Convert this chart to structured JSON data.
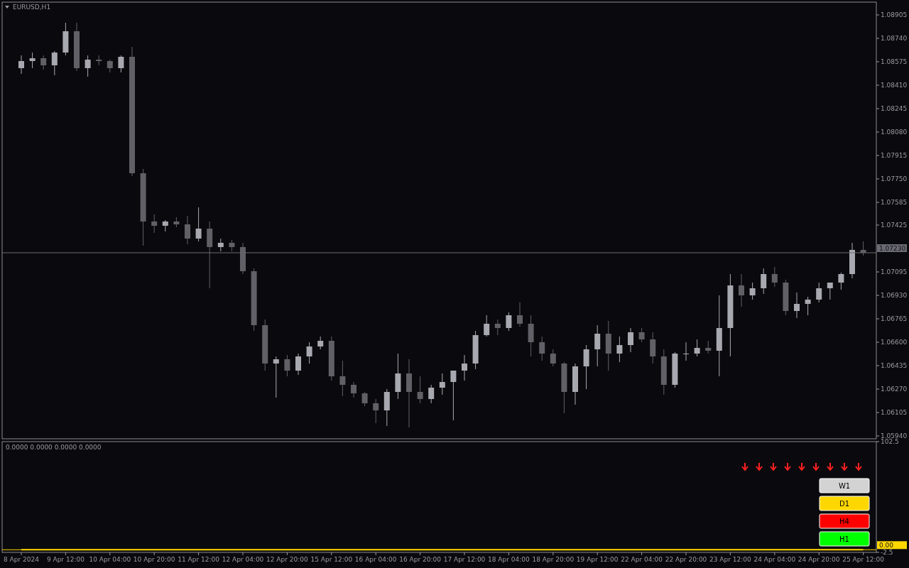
{
  "chart_data": [
    {
      "type": "candlestick",
      "title": "EURUSD,H1",
      "categories": [
        null,
        null,
        null,
        null,
        null,
        null,
        null,
        null,
        null,
        null,
        null,
        null,
        null,
        null,
        null,
        null,
        null,
        null,
        null,
        null,
        null,
        null,
        null,
        null,
        null,
        null,
        null,
        null,
        null,
        null,
        null,
        null,
        null,
        null,
        null,
        null,
        null,
        null,
        null,
        null,
        null,
        null,
        null,
        null,
        null,
        null,
        null,
        null,
        null,
        null,
        null,
        null,
        null,
        null,
        null,
        null,
        null,
        null,
        null,
        null,
        null,
        null,
        null,
        null,
        null,
        null,
        null,
        null,
        null,
        null,
        null,
        null,
        null,
        null,
        null,
        null,
        null
      ],
      "ohlc": [
        [
          1.0853,
          1.0862,
          1.0849,
          1.0858
        ],
        [
          1.0858,
          1.0864,
          1.0853,
          1.086
        ],
        [
          1.086,
          1.0862,
          1.0852,
          1.0855
        ],
        [
          1.0855,
          1.0865,
          1.0848,
          1.0864
        ],
        [
          1.0864,
          1.0885,
          1.0862,
          1.0879
        ],
        [
          1.0879,
          1.0885,
          1.0851,
          1.0853
        ],
        [
          1.0853,
          1.0862,
          1.0847,
          1.0859
        ],
        [
          1.0859,
          1.0862,
          1.0855,
          1.0858
        ],
        [
          1.0858,
          1.0859,
          1.085,
          1.0853
        ],
        [
          1.0853,
          1.0862,
          1.085,
          1.0861
        ],
        [
          1.0861,
          1.0868,
          1.0777,
          1.0779
        ],
        [
          1.0779,
          1.0782,
          1.0728,
          1.0745
        ],
        [
          1.0745,
          1.075,
          1.0737,
          1.0742
        ],
        [
          1.0742,
          1.0746,
          1.0738,
          1.0745
        ],
        [
          1.0745,
          1.0748,
          1.0741,
          1.0743
        ],
        [
          1.0743,
          1.0749,
          1.0729,
          1.0733
        ],
        [
          1.0733,
          1.0755,
          1.0731,
          1.074
        ],
        [
          1.074,
          1.0745,
          1.0698,
          1.0727
        ],
        [
          1.0727,
          1.0733,
          1.0724,
          1.073
        ],
        [
          1.073,
          1.0732,
          1.0724,
          1.0727
        ],
        [
          1.0727,
          1.073,
          1.0708,
          1.071
        ],
        [
          1.071,
          1.0712,
          1.0668,
          1.0672
        ],
        [
          1.0672,
          1.0676,
          1.064,
          1.0645
        ],
        [
          1.0645,
          1.065,
          1.0621,
          1.0648
        ],
        [
          1.0648,
          1.0651,
          1.0636,
          1.064
        ],
        [
          1.064,
          1.0652,
          1.0637,
          1.065
        ],
        [
          1.065,
          1.066,
          1.0645,
          1.0657
        ],
        [
          1.0657,
          1.0664,
          1.0655,
          1.0661
        ],
        [
          1.0661,
          1.0664,
          1.0633,
          1.0636
        ],
        [
          1.0636,
          1.0647,
          1.0622,
          1.063
        ],
        [
          1.063,
          1.0632,
          1.0621,
          1.0624
        ],
        [
          1.0624,
          1.0625,
          1.0615,
          1.0617
        ],
        [
          1.0617,
          1.062,
          1.0603,
          1.0612
        ],
        [
          1.0612,
          1.0627,
          1.0601,
          1.0625
        ],
        [
          1.0625,
          1.0652,
          1.062,
          1.0638
        ],
        [
          1.0638,
          1.0648,
          1.06,
          1.0625
        ],
        [
          1.0625,
          1.0636,
          1.0617,
          1.062
        ],
        [
          1.062,
          1.063,
          1.0617,
          1.0628
        ],
        [
          1.0628,
          1.0638,
          1.0623,
          1.0632
        ],
        [
          1.0632,
          1.064,
          1.0605,
          1.064
        ],
        [
          1.064,
          1.0651,
          1.0633,
          1.0645
        ],
        [
          1.0645,
          1.0668,
          1.0641,
          1.0665
        ],
        [
          1.0665,
          1.0679,
          1.0664,
          1.0673
        ],
        [
          1.0673,
          1.0676,
          1.0665,
          1.067
        ],
        [
          1.067,
          1.0681,
          1.0668,
          1.0679
        ],
        [
          1.0679,
          1.0688,
          1.0671,
          1.0673
        ],
        [
          1.0673,
          1.0679,
          1.065,
          1.066
        ],
        [
          1.066,
          1.0664,
          1.0647,
          1.0652
        ],
        [
          1.0652,
          1.0655,
          1.0643,
          1.0645
        ],
        [
          1.0645,
          1.0646,
          1.061,
          1.0625
        ],
        [
          1.0625,
          1.0645,
          1.0616,
          1.0643
        ],
        [
          1.0643,
          1.0658,
          1.0627,
          1.0655
        ],
        [
          1.0655,
          1.0672,
          1.0643,
          1.0666
        ],
        [
          1.0666,
          1.0675,
          1.064,
          1.0652
        ],
        [
          1.0652,
          1.0664,
          1.0646,
          1.0658
        ],
        [
          1.0658,
          1.067,
          1.0653,
          1.0667
        ],
        [
          1.0667,
          1.067,
          1.066,
          1.0662
        ],
        [
          1.0662,
          1.0667,
          1.0645,
          1.065
        ],
        [
          1.065,
          1.0655,
          1.0623,
          1.063
        ],
        [
          1.063,
          1.0653,
          1.0628,
          1.0652
        ],
        [
          1.0652,
          1.066,
          1.0647,
          1.0652
        ],
        [
          1.0652,
          1.0662,
          1.065,
          1.0656
        ],
        [
          1.0656,
          1.0661,
          1.0652,
          1.0654
        ],
        [
          1.0654,
          1.0693,
          1.0636,
          1.067
        ],
        [
          1.067,
          1.0708,
          1.065,
          1.07
        ],
        [
          1.07,
          1.0708,
          1.0685,
          1.0693
        ],
        [
          1.0693,
          1.0702,
          1.069,
          1.0698
        ],
        [
          1.0698,
          1.0712,
          1.0694,
          1.0708
        ],
        [
          1.0708,
          1.0713,
          1.0699,
          1.0702
        ],
        [
          1.0702,
          1.0704,
          1.0679,
          1.0682
        ],
        [
          1.0682,
          1.0695,
          1.0677,
          1.0687
        ],
        [
          1.0687,
          1.0692,
          1.0679,
          1.069
        ],
        [
          1.069,
          1.0702,
          1.0688,
          1.0698
        ],
        [
          1.0698,
          1.0702,
          1.069,
          1.0702
        ],
        [
          1.0702,
          1.0709,
          1.0697,
          1.0708
        ],
        [
          1.0708,
          1.073,
          1.0705,
          1.0725
        ],
        [
          1.0725,
          1.0731,
          1.0721,
          1.0723
        ]
      ],
      "ylim": [
        1.0592,
        1.08995
      ],
      "yticks": [
        {
          "value": 1.0594,
          "label": "1.05940"
        },
        {
          "value": 1.06105,
          "label": "1.06105"
        },
        {
          "value": 1.0627,
          "label": "1.06270"
        },
        {
          "value": 1.06435,
          "label": "1.06435"
        },
        {
          "value": 1.066,
          "label": "1.06600"
        },
        {
          "value": 1.06765,
          "label": "1.06765"
        },
        {
          "value": 1.0693,
          "label": "1.06930"
        },
        {
          "value": 1.07095,
          "label": "1.07095"
        },
        {
          "value": 1.07425,
          "label": "1.07425"
        },
        {
          "value": 1.07585,
          "label": "1.07585"
        },
        {
          "value": 1.0775,
          "label": "1.07750"
        },
        {
          "value": 1.07915,
          "label": "1.07915"
        },
        {
          "value": 1.0808,
          "label": "1.08080"
        },
        {
          "value": 1.08245,
          "label": "1.08245"
        },
        {
          "value": 1.0841,
          "label": "1.08410"
        },
        {
          "value": 1.08575,
          "label": "1.08575"
        },
        {
          "value": 1.0874,
          "label": "1.08740"
        },
        {
          "value": 1.08905,
          "label": "1.08905"
        }
      ],
      "ref_lines": [
        {
          "axis": "y",
          "value": 1.0723,
          "label": "1.07230",
          "color": "#6b6b73"
        }
      ],
      "tick_labels": "y"
    },
    {
      "type": "line",
      "title": "0.0000 0.0000 0.0000 0.0000",
      "categories": [
        "8 Apr 2024",
        null,
        null,
        null,
        "9 Apr 12:00",
        null,
        null,
        null,
        "10 Apr 04:00",
        null,
        null,
        null,
        "10 Apr 20:00",
        null,
        null,
        null,
        "11 Apr 12:00",
        null,
        null,
        null,
        "12 Apr 04:00",
        null,
        null,
        null,
        "12 Apr 20:00",
        null,
        null,
        null,
        "15 Apr 12:00",
        null,
        null,
        null,
        "16 Apr 04:00",
        null,
        null,
        null,
        "16 Apr 20:00",
        null,
        null,
        null,
        "17 Apr 12:00",
        null,
        null,
        null,
        "18 Apr 04:00",
        null,
        null,
        null,
        "18 Apr 20:00",
        null,
        null,
        null,
        "19 Apr 12:00",
        null,
        null,
        null,
        "22 Apr 04:00",
        null,
        null,
        null,
        "22 Apr 20:00",
        null,
        null,
        null,
        "23 Apr 12:00",
        null,
        null,
        null,
        "24 Apr 04:00",
        null,
        null,
        null,
        "24 Apr 20:00",
        null,
        null,
        null,
        "25 Apr 12:00"
      ],
      "series": [
        {
          "color": "#ffd700",
          "values": [
            0,
            0,
            0,
            0,
            0,
            0,
            0,
            0,
            0,
            0,
            0,
            0,
            0,
            0,
            0,
            0,
            0,
            0,
            0,
            0,
            0,
            0,
            0,
            0,
            0,
            0,
            0,
            0,
            0,
            0,
            0,
            0,
            0,
            0,
            0,
            0,
            0,
            0,
            0,
            0,
            0,
            0,
            0,
            0,
            0,
            0,
            0,
            0,
            0,
            0,
            0,
            0,
            0,
            0,
            0,
            0,
            0,
            0,
            0,
            0,
            0,
            0,
            0,
            0,
            0,
            0,
            0,
            0,
            0,
            0,
            0,
            0,
            0,
            0,
            0,
            0,
            0
          ]
        }
      ],
      "ylim": [
        -2.5,
        102.5
      ],
      "yticks": [
        102.5,
        -2.5
      ],
      "ref_lines": [
        {
          "axis": "y",
          "value": 0,
          "label": "0.00",
          "color": "#ffd700"
        }
      ],
      "annotations": [
        "W1",
        "D1",
        "H4",
        "H1"
      ]
    }
  ]
}
